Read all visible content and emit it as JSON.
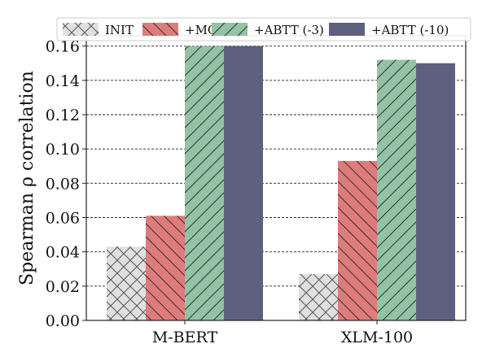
{
  "chart_data": {
    "type": "bar",
    "categories": [
      "M-BERT",
      "XLM-100"
    ],
    "series": [
      {
        "name": "INIT",
        "values": [
          0.043,
          0.027
        ],
        "color": "#e0e0e0",
        "hatch": "cross"
      },
      {
        "name": "+MC",
        "values": [
          0.061,
          0.093
        ],
        "color": "#e07b7b",
        "hatch": "backslash"
      },
      {
        "name": "+ABTT (-3)",
        "values": [
          0.16,
          0.152
        ],
        "color": "#93c2a5",
        "hatch": "slash"
      },
      {
        "name": "+ABTT (-10)",
        "values": [
          0.16,
          0.15
        ],
        "color": "#5f5f7f",
        "hatch": "none"
      }
    ],
    "ylabel": "Spearman ρ correlation",
    "ylim": [
      0,
      0.166
    ],
    "yticks": [
      "0.00",
      "0.02",
      "0.04",
      "0.06",
      "0.08",
      "0.10",
      "0.12",
      "0.14",
      "0.16"
    ],
    "grid": "horizontal-dashed",
    "legend": "top"
  }
}
